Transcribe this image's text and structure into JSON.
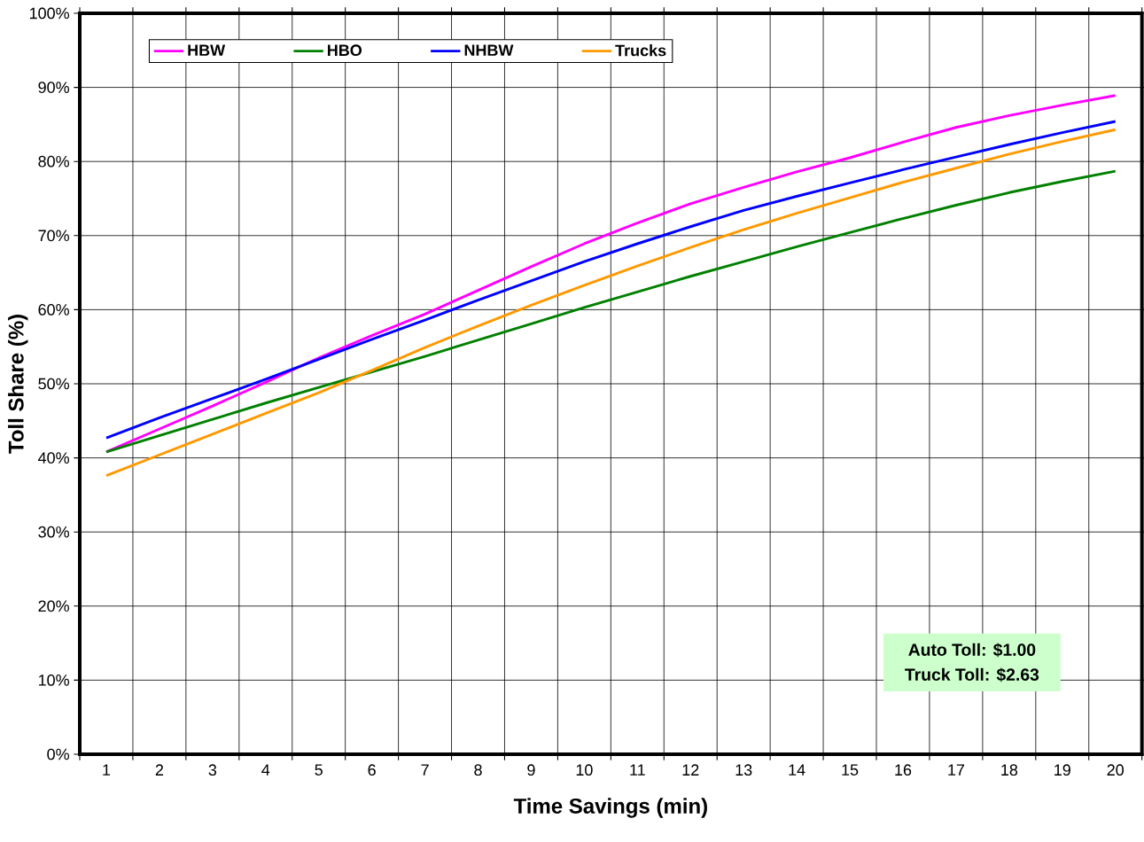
{
  "chart_data": {
    "type": "line",
    "xlabel": "Time Savings (min)",
    "ylabel": "Toll Share (%)",
    "categories": [
      "1",
      "2",
      "3",
      "4",
      "5",
      "6",
      "7",
      "8",
      "9",
      "10",
      "11",
      "12",
      "13",
      "14",
      "15",
      "16",
      "17",
      "18",
      "19",
      "20"
    ],
    "series": [
      {
        "name": "HBW",
        "color": "#ff00ff",
        "values": [
          40.8,
          43.9,
          47.0,
          50.2,
          53.5,
          56.5,
          59.4,
          62.6,
          65.8,
          68.9,
          71.7,
          74.3,
          76.5,
          78.6,
          80.5,
          82.6,
          84.6,
          86.2,
          87.6,
          88.9
        ]
      },
      {
        "name": "HBO",
        "color": "#008000",
        "values": [
          40.8,
          43.0,
          45.2,
          47.4,
          49.5,
          51.6,
          53.7,
          55.9,
          58.1,
          60.3,
          62.4,
          64.5,
          66.5,
          68.5,
          70.4,
          72.3,
          74.1,
          75.8,
          77.3,
          78.7
        ]
      },
      {
        "name": "NHBW",
        "color": "#0000ff",
        "values": [
          42.7,
          45.4,
          48.0,
          50.6,
          53.3,
          56.0,
          58.6,
          61.3,
          63.9,
          66.5,
          68.9,
          71.2,
          73.4,
          75.3,
          77.1,
          78.9,
          80.6,
          82.3,
          83.9,
          85.4
        ]
      },
      {
        "name": "Trucks",
        "color": "#ff9900",
        "values": [
          37.6,
          40.4,
          43.2,
          46.0,
          48.8,
          51.8,
          54.9,
          57.8,
          60.6,
          63.3,
          65.9,
          68.4,
          70.8,
          73.0,
          75.1,
          77.2,
          79.1,
          81.0,
          82.7,
          84.3
        ]
      }
    ],
    "ylim": [
      0,
      100
    ],
    "yticks": [
      {
        "value": 0,
        "label": "0%"
      },
      {
        "value": 10,
        "label": "10%"
      },
      {
        "value": 20,
        "label": "20%"
      },
      {
        "value": 30,
        "label": "30%"
      },
      {
        "value": 40,
        "label": "40%"
      },
      {
        "value": 50,
        "label": "50%"
      },
      {
        "value": 60,
        "label": "60%"
      },
      {
        "value": 70,
        "label": "70%"
      },
      {
        "value": 80,
        "label": "80%"
      },
      {
        "value": 90,
        "label": "90%"
      },
      {
        "value": 100,
        "label": "100%"
      }
    ],
    "grid": true,
    "legend": "top left",
    "marker": "none",
    "line_style": "solid",
    "annotations": [
      "Auto Toll: $1.00",
      "Truck Toll: $2.63"
    ]
  }
}
